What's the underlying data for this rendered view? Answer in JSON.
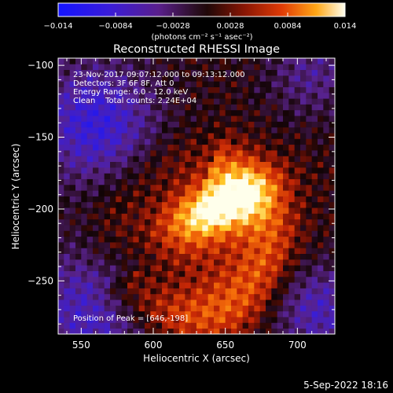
{
  "chart_data": {
    "type": "heatmap",
    "title": "Reconstructed RHESSI Image",
    "xlabel": "Heliocentric X (arcsec)",
    "ylabel": "Heliocentric Y (arcsec)",
    "xlim": [
      534,
      726
    ],
    "ylim": [
      -287,
      -95
    ],
    "x_ticks": [
      550,
      600,
      650,
      700
    ],
    "y_ticks": [
      -250,
      -200,
      -150,
      -100
    ],
    "x_tick_labels": [
      "550",
      "600",
      "650",
      "700"
    ],
    "y_tick_labels": [
      "−250",
      "−200",
      "−150",
      "−100"
    ],
    "colorbar": {
      "min": -0.014,
      "max": 0.014,
      "tick_labels": [
        "−0.014",
        "−0.0084",
        "−0.0028",
        "0.0028",
        "0.0084",
        "0.014"
      ],
      "tick_values": [
        -0.014,
        -0.0084,
        -0.0028,
        0.0028,
        0.0084,
        0.014
      ],
      "unit_label": "(photons cm⁻² s⁻¹ asec⁻²)"
    },
    "annotations": [
      "23-Nov-2017 09:07:12.000 to 09:13:12.000",
      "Detectors: 3F 6F 8F, Att 0",
      "Energy Range: 6.0 - 12.0 keV",
      "Clean    Total counts: 2.24E+04"
    ],
    "peak_label": "Position of Peak = [646,-198]",
    "peak": {
      "x": 646,
      "y": -198,
      "value": 0.014
    },
    "timestamp": "5-Sep-2022 18:16"
  }
}
